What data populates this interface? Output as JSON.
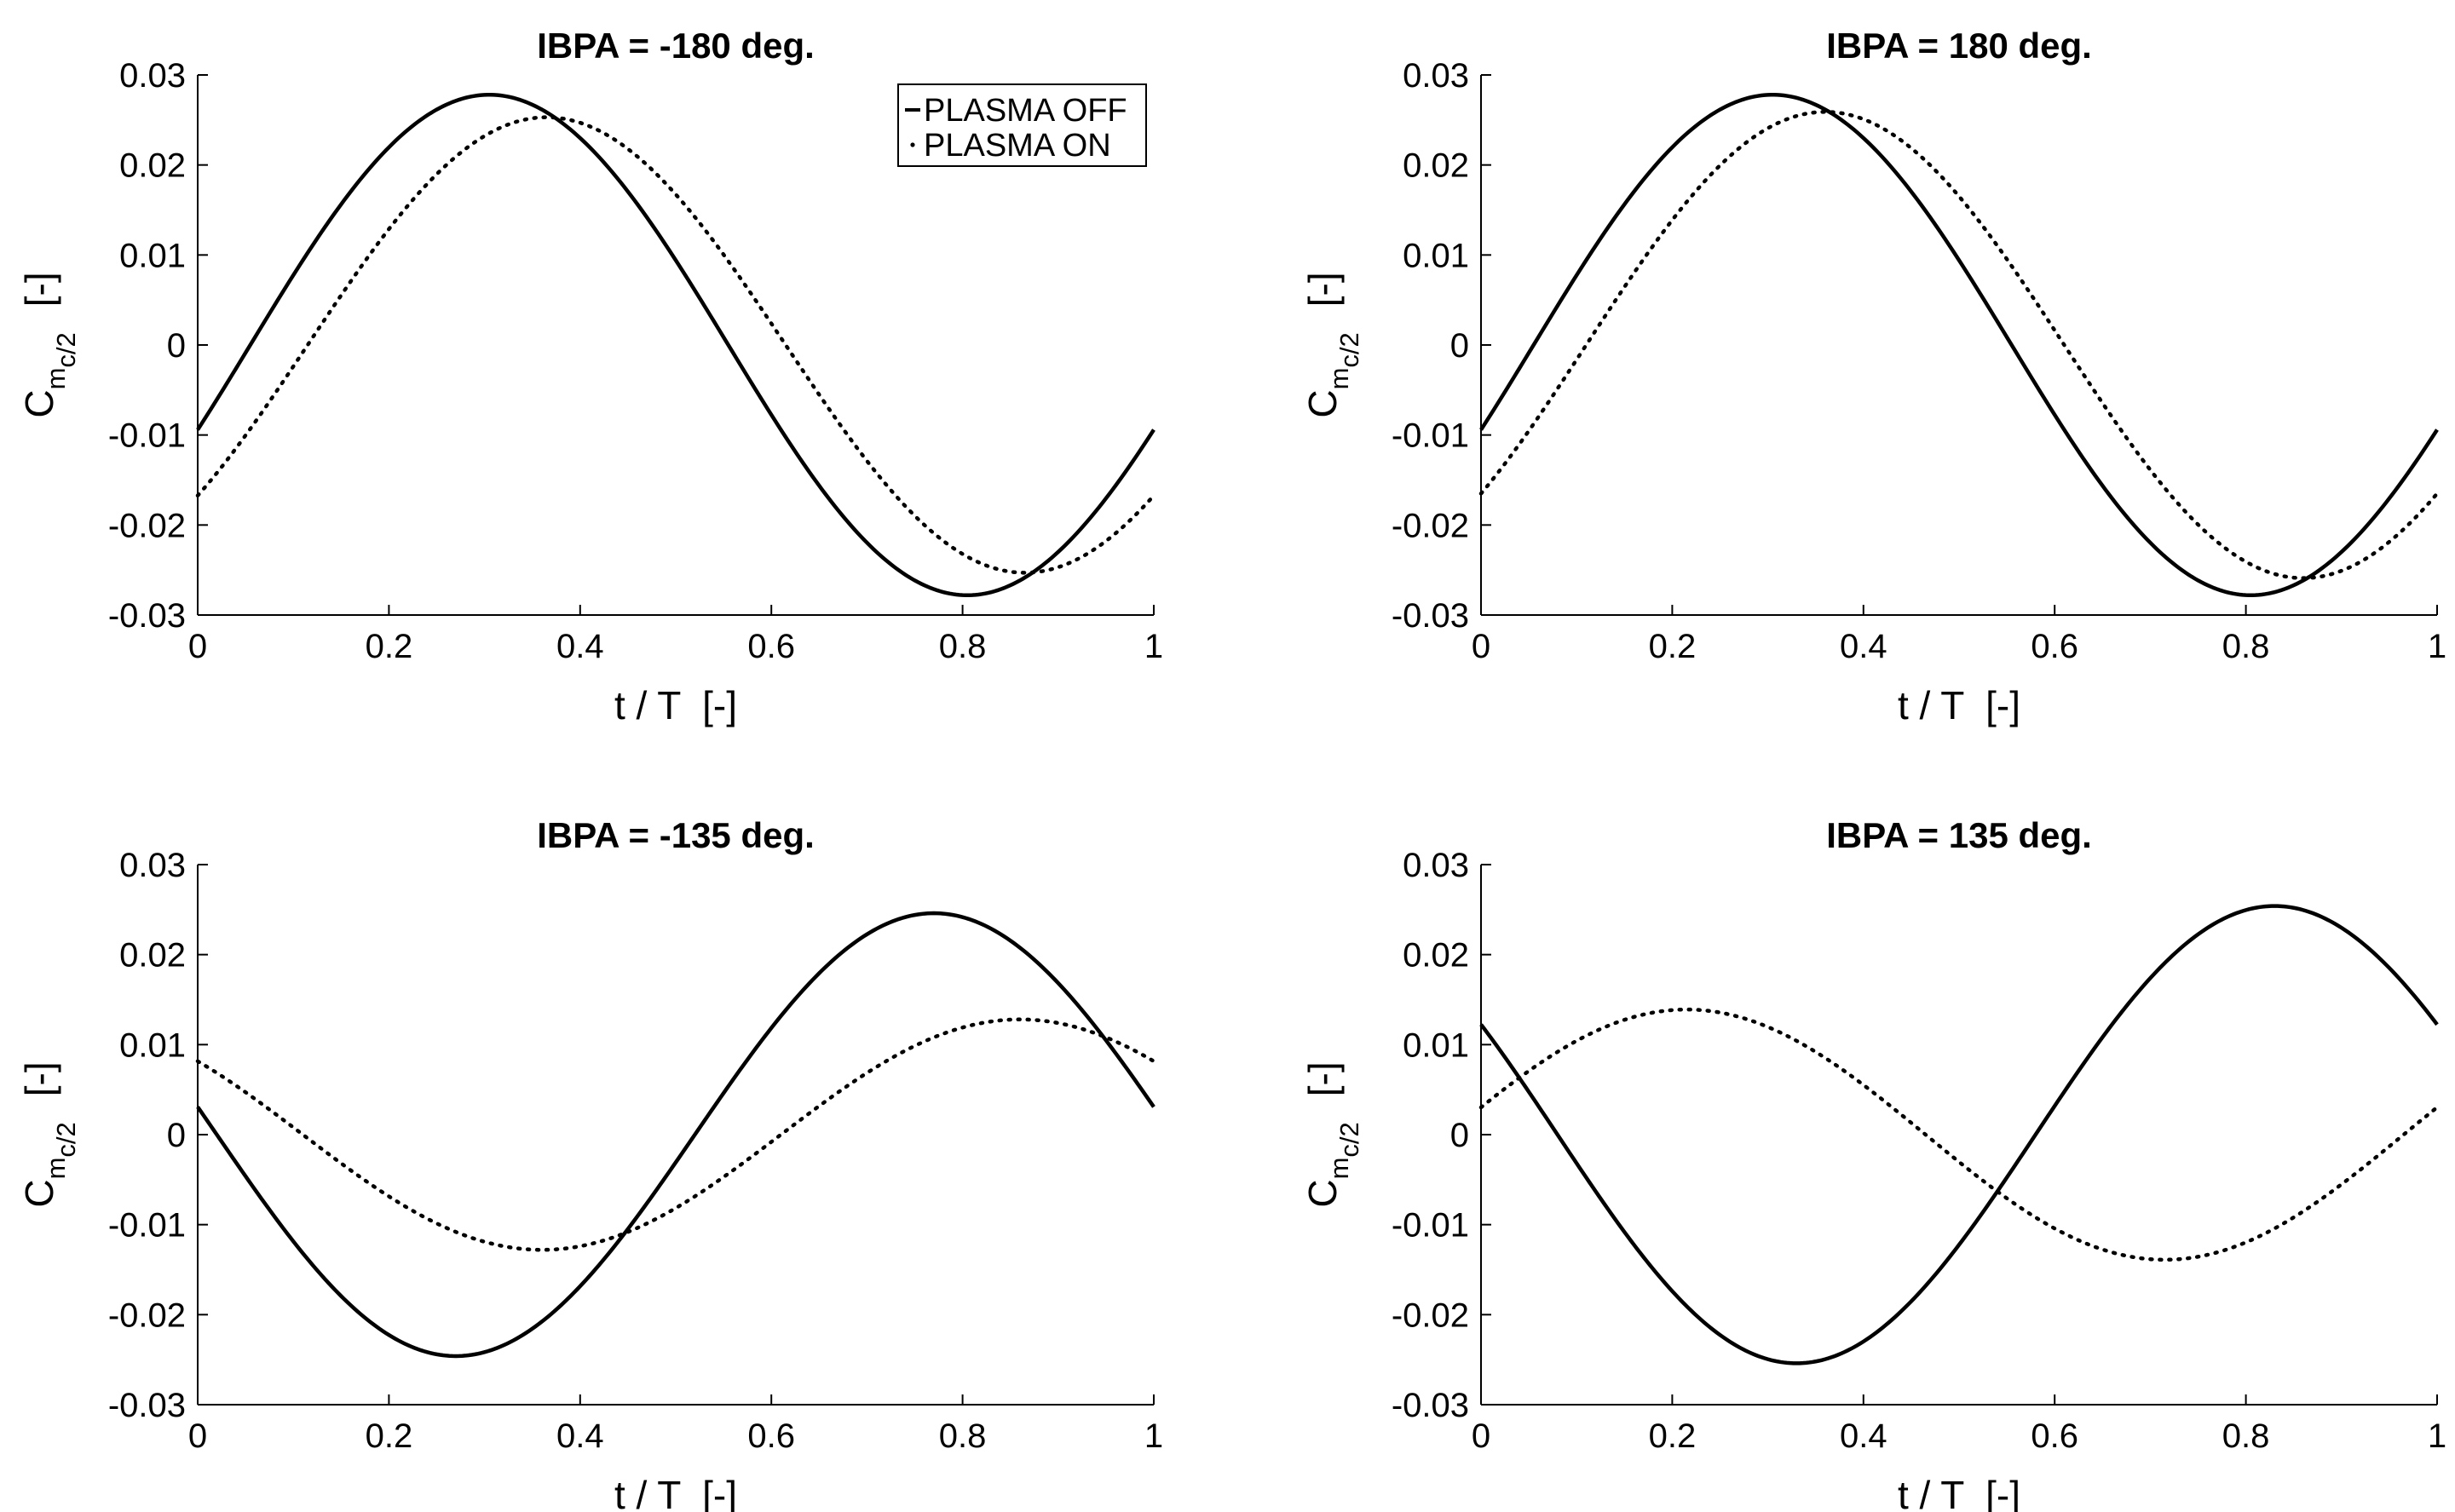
{
  "figure": {
    "legend": {
      "items": [
        "PLASMA OFF",
        "PLASMA ON"
      ],
      "styles": [
        "solid",
        "dotted"
      ],
      "location": "top-right of first panel"
    }
  },
  "chart_data": [
    {
      "type": "line",
      "title": "IBPA = -180 deg.",
      "xlabel": "t / T  [-]",
      "ylabel": {
        "main": "C",
        "sub1": "m",
        "sub2": "c/2",
        "unit": "[-]"
      },
      "xlim": [
        0,
        1
      ],
      "ylim": [
        -0.03,
        0.03
      ],
      "xticks": [
        "0",
        "0.2",
        "0.4",
        "0.6",
        "0.8",
        "1"
      ],
      "yticks": [
        "-0.03",
        "-0.02",
        "-0.01",
        "0",
        "0.01",
        "0.02",
        "0.03"
      ],
      "show_legend": true,
      "series": [
        {
          "name": "PLASMA OFF",
          "style": "solid",
          "model": "sine",
          "amplitude": 0.0278,
          "peak_t": 0.305,
          "offset": 0.0
        },
        {
          "name": "PLASMA ON",
          "style": "dotted",
          "model": "sine",
          "amplitude": 0.0253,
          "peak_t": 0.365,
          "offset": 0.0
        }
      ]
    },
    {
      "type": "line",
      "title": "IBPA = 180 deg.",
      "xlabel": "t / T  [-]",
      "ylabel": {
        "main": "C",
        "sub1": "m",
        "sub2": "c/2",
        "unit": "[-]"
      },
      "xlim": [
        0,
        1
      ],
      "ylim": [
        -0.03,
        0.03
      ],
      "xticks": [
        "0",
        "0.2",
        "0.4",
        "0.6",
        "0.8",
        "1"
      ],
      "yticks": [
        "-0.03",
        "-0.02",
        "-0.01",
        "0",
        "0.01",
        "0.02",
        "0.03"
      ],
      "show_legend": false,
      "series": [
        {
          "name": "PLASMA OFF",
          "style": "solid",
          "model": "sine",
          "amplitude": 0.0278,
          "peak_t": 0.305,
          "offset": 0.0
        },
        {
          "name": "PLASMA ON",
          "style": "dotted",
          "model": "sine",
          "amplitude": 0.0259,
          "peak_t": 0.36,
          "offset": 0.0
        }
      ]
    },
    {
      "type": "line",
      "title": "IBPA = -135 deg.",
      "xlabel": "t / T  [-]",
      "ylabel": {
        "main": "C",
        "sub1": "m",
        "sub2": "c/2",
        "unit": "[-]"
      },
      "xlim": [
        0,
        1
      ],
      "ylim": [
        -0.03,
        0.03
      ],
      "xticks": [
        "0",
        "0.2",
        "0.4",
        "0.6",
        "0.8",
        "1"
      ],
      "yticks": [
        "-0.03",
        "-0.02",
        "-0.01",
        "0",
        "0.01",
        "0.02",
        "0.03"
      ],
      "show_legend": false,
      "series": [
        {
          "name": "PLASMA OFF",
          "style": "solid",
          "model": "sine",
          "amplitude": 0.0246,
          "peak_t": 0.77,
          "offset": 0.0
        },
        {
          "name": "PLASMA ON",
          "style": "dotted",
          "model": "sine",
          "amplitude": 0.0128,
          "peak_t": 0.86,
          "offset": 0.0
        }
      ]
    },
    {
      "type": "line",
      "title": "IBPA = 135 deg.",
      "xlabel": "t / T  [-]",
      "ylabel": {
        "main": "C",
        "sub1": "m",
        "sub2": "c/2",
        "unit": "[-]"
      },
      "xlim": [
        0,
        1
      ],
      "ylim": [
        -0.03,
        0.03
      ],
      "xticks": [
        "0",
        "0.2",
        "0.4",
        "0.6",
        "0.8",
        "1"
      ],
      "yticks": [
        "-0.03",
        "-0.02",
        "-0.01",
        "0",
        "0.01",
        "0.02",
        "0.03"
      ],
      "show_legend": false,
      "series": [
        {
          "name": "PLASMA OFF",
          "style": "solid",
          "model": "sine",
          "amplitude": 0.0254,
          "peak_t": 0.83,
          "offset": 0.0
        },
        {
          "name": "PLASMA ON",
          "style": "dotted",
          "model": "sine",
          "amplitude": 0.0139,
          "peak_t": 0.215,
          "offset": 0.0
        }
      ]
    }
  ]
}
